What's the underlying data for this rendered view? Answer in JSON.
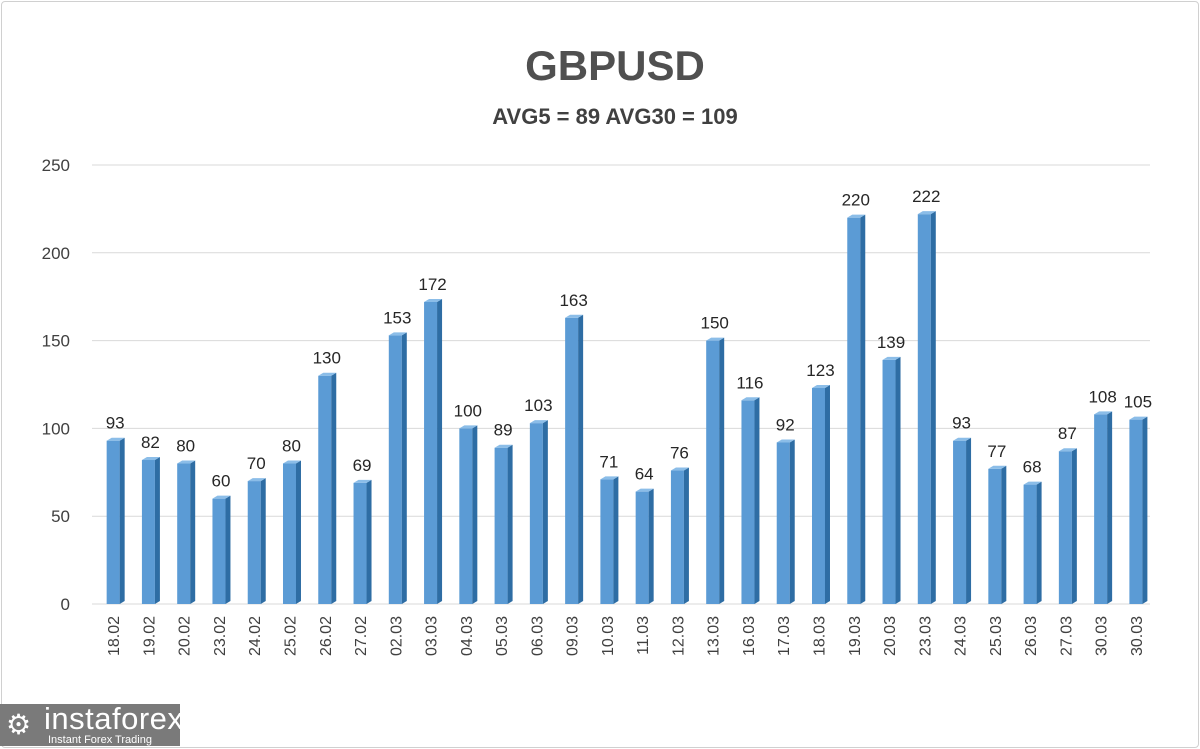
{
  "chart_data": {
    "type": "bar",
    "title": "GBPUSD",
    "subtitle": "AVG5 = 89 AVG30 = 109",
    "categories": [
      "18.02",
      "19.02",
      "20.02",
      "23.02",
      "24.02",
      "25.02",
      "26.02",
      "27.02",
      "02.03",
      "03.03",
      "04.03",
      "05.03",
      "06.03",
      "09.03",
      "10.03",
      "11.03",
      "12.03",
      "13.03",
      "16.03",
      "17.03",
      "18.03",
      "19.03",
      "20.03",
      "23.03",
      "24.03",
      "25.03",
      "26.03",
      "27.03",
      "30.03",
      "30.03"
    ],
    "values": [
      93,
      82,
      80,
      60,
      70,
      80,
      130,
      69,
      153,
      172,
      100,
      89,
      103,
      163,
      71,
      64,
      76,
      150,
      116,
      92,
      123,
      220,
      139,
      222,
      93,
      77,
      68,
      87,
      108,
      105
    ],
    "yticks": [
      0,
      50,
      100,
      150,
      200,
      250
    ],
    "ylim": [
      0,
      250
    ],
    "grid": true,
    "legend": "none",
    "colors": {
      "bar": "#5b9bd5",
      "bar_side": "#2e6da4",
      "bar_top": "#8bbde8",
      "grid": "#d9d9d9"
    }
  },
  "logo": {
    "name": "instaforex",
    "tagline": "Instant Forex Trading"
  }
}
